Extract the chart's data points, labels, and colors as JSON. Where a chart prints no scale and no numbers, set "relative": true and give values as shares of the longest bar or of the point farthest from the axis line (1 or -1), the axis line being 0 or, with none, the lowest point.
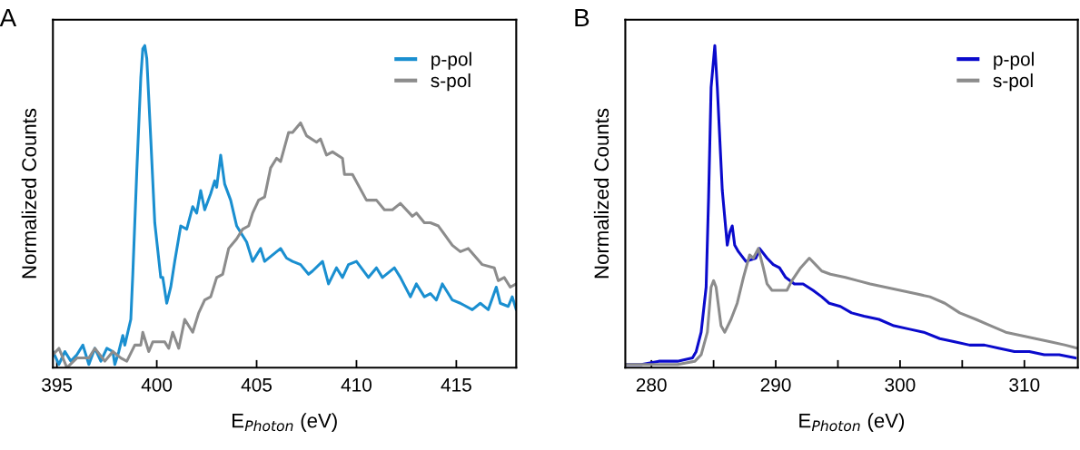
{
  "chart_data": [
    {
      "type": "line",
      "title": "A",
      "xlabel": "E$_{Photon}$ (eV)",
      "ylabel": "Normalized Counts",
      "relative": true,
      "legend": "top right",
      "xlim": [
        394.8,
        418.0
      ],
      "xticks": [
        395,
        400,
        405,
        410,
        415
      ],
      "grid": false,
      "series": [
        {
          "name": "p-pol",
          "color": "#1a8fd0",
          "x": [
            394.8,
            395.1,
            395.4,
            395.7,
            396.0,
            396.3,
            396.6,
            396.9,
            397.2,
            397.5,
            397.8,
            397.9,
            398.1,
            398.3,
            398.4,
            398.7,
            398.8,
            399.0,
            399.2,
            399.3,
            399.4,
            399.5,
            399.7,
            399.9,
            400.2,
            400.3,
            400.5,
            400.7,
            400.9,
            401.2,
            401.5,
            401.8,
            402.0,
            402.2,
            402.4,
            402.7,
            402.9,
            403.0,
            403.2,
            403.4,
            403.7,
            404.0,
            404.5,
            404.8,
            405.2,
            405.4,
            406.2,
            406.5,
            406.8,
            407.2,
            407.6,
            407.8,
            408.3,
            408.6,
            409.0,
            409.3,
            409.6,
            410.0,
            410.6,
            411.0,
            411.3,
            411.9,
            412.2,
            412.7,
            413.0,
            413.4,
            413.7,
            414.0,
            414.3,
            414.8,
            415.2,
            415.8,
            416.2,
            416.6,
            417.0,
            417.2,
            417.6,
            417.8,
            418.0
          ],
          "values": [
            0.05,
            0.01,
            0.05,
            0.02,
            0.04,
            0.07,
            0.01,
            0.06,
            0.02,
            0.06,
            0.05,
            0.01,
            0.05,
            0.1,
            0.07,
            0.15,
            0.29,
            0.61,
            0.9,
            0.99,
            1.0,
            0.96,
            0.71,
            0.45,
            0.28,
            0.28,
            0.2,
            0.25,
            0.33,
            0.44,
            0.43,
            0.5,
            0.48,
            0.55,
            0.49,
            0.54,
            0.58,
            0.56,
            0.66,
            0.57,
            0.52,
            0.44,
            0.39,
            0.33,
            0.37,
            0.33,
            0.37,
            0.34,
            0.33,
            0.32,
            0.29,
            0.3,
            0.33,
            0.26,
            0.31,
            0.28,
            0.32,
            0.33,
            0.28,
            0.31,
            0.28,
            0.31,
            0.28,
            0.22,
            0.26,
            0.22,
            0.23,
            0.21,
            0.26,
            0.21,
            0.2,
            0.18,
            0.2,
            0.18,
            0.25,
            0.2,
            0.19,
            0.22,
            0.18
          ]
        },
        {
          "name": "s-pol",
          "color": "#8c8c8c",
          "x": [
            394.8,
            395.1,
            395.5,
            396.0,
            396.6,
            396.9,
            397.4,
            397.8,
            398.2,
            398.5,
            398.9,
            399.2,
            399.3,
            399.6,
            399.8,
            400.4,
            400.6,
            400.8,
            401.1,
            401.4,
            401.8,
            402.1,
            402.4,
            402.7,
            403.0,
            403.3,
            403.6,
            404.0,
            404.3,
            404.6,
            404.8,
            405.1,
            405.4,
            405.7,
            406.0,
            406.2,
            406.6,
            406.8,
            407.2,
            407.5,
            408.0,
            408.2,
            408.5,
            408.8,
            409.3,
            409.4,
            409.8,
            410.5,
            411.0,
            411.4,
            411.8,
            412.2,
            412.8,
            413.0,
            413.4,
            413.7,
            414.1,
            414.8,
            415.2,
            415.6,
            416.3,
            416.9,
            417.1,
            417.4,
            417.7,
            418.0
          ],
          "values": [
            0.04,
            0.06,
            0.0,
            0.03,
            0.03,
            0.06,
            0.02,
            0.05,
            0.03,
            0.02,
            0.07,
            0.07,
            0.11,
            0.05,
            0.08,
            0.08,
            0.06,
            0.11,
            0.06,
            0.15,
            0.11,
            0.17,
            0.21,
            0.22,
            0.28,
            0.29,
            0.37,
            0.4,
            0.43,
            0.44,
            0.48,
            0.52,
            0.53,
            0.62,
            0.65,
            0.64,
            0.73,
            0.73,
            0.76,
            0.72,
            0.7,
            0.71,
            0.66,
            0.67,
            0.65,
            0.6,
            0.6,
            0.52,
            0.52,
            0.49,
            0.49,
            0.51,
            0.47,
            0.48,
            0.45,
            0.45,
            0.44,
            0.38,
            0.36,
            0.37,
            0.32,
            0.31,
            0.27,
            0.28,
            0.25,
            0.26
          ]
        }
      ]
    },
    {
      "type": "line",
      "title": "B",
      "xlabel": "E$_{Photon}$ (eV)",
      "ylabel": "Normalized Counts",
      "relative": true,
      "legend": "top right",
      "xlim": [
        277.9,
        314.3
      ],
      "xticks": [
        280,
        {
          "value": 285,
          "label": null
        },
        290,
        {
          "value": 295,
          "label": null
        },
        300,
        {
          "value": 305,
          "label": null
        },
        310
      ],
      "grid": false,
      "series": [
        {
          "name": "p-pol",
          "color": "#0a0acc",
          "x": [
            277.9,
            279.2,
            280.6,
            282.1,
            283.3,
            283.6,
            284.0,
            284.4,
            284.6,
            284.8,
            285.1,
            285.3,
            285.7,
            286.1,
            286.3,
            286.5,
            286.7,
            287.0,
            287.6,
            288.4,
            288.7,
            289.3,
            289.8,
            290.3,
            290.8,
            291.5,
            292.2,
            293.0,
            293.7,
            294.3,
            295.2,
            296.1,
            297.1,
            298.3,
            299.5,
            300.7,
            301.9,
            303.2,
            304.4,
            305.6,
            306.8,
            308.0,
            309.2,
            310.4,
            311.6,
            312.8,
            314.1
          ],
          "values": [
            0.01,
            0.01,
            0.02,
            0.02,
            0.03,
            0.05,
            0.11,
            0.25,
            0.53,
            0.87,
            1.0,
            0.87,
            0.55,
            0.38,
            0.42,
            0.44,
            0.38,
            0.36,
            0.33,
            0.34,
            0.37,
            0.34,
            0.32,
            0.31,
            0.28,
            0.26,
            0.26,
            0.24,
            0.22,
            0.2,
            0.19,
            0.17,
            0.16,
            0.15,
            0.13,
            0.12,
            0.11,
            0.09,
            0.08,
            0.07,
            0.07,
            0.06,
            0.05,
            0.05,
            0.04,
            0.04,
            0.03
          ]
        },
        {
          "name": "s-pol",
          "color": "#8c8c8c",
          "x": [
            277.9,
            279.2,
            280.6,
            282.1,
            283.5,
            284.0,
            284.5,
            284.8,
            285.0,
            285.2,
            285.6,
            285.9,
            286.4,
            286.9,
            287.4,
            287.9,
            288.2,
            288.6,
            289.0,
            289.3,
            289.7,
            290.3,
            290.9,
            291.3,
            292.0,
            292.7,
            293.2,
            293.7,
            294.4,
            295.6,
            296.6,
            297.6,
            298.8,
            300.0,
            301.2,
            302.4,
            303.6,
            304.8,
            306.1,
            307.3,
            308.5,
            309.7,
            310.9,
            312.1,
            313.3,
            314.3
          ],
          "values": [
            0.01,
            0.01,
            0.01,
            0.01,
            0.02,
            0.04,
            0.11,
            0.25,
            0.27,
            0.25,
            0.13,
            0.11,
            0.15,
            0.2,
            0.28,
            0.35,
            0.34,
            0.37,
            0.31,
            0.26,
            0.24,
            0.24,
            0.24,
            0.27,
            0.31,
            0.34,
            0.32,
            0.3,
            0.29,
            0.28,
            0.27,
            0.26,
            0.25,
            0.24,
            0.23,
            0.22,
            0.2,
            0.17,
            0.15,
            0.13,
            0.11,
            0.1,
            0.09,
            0.08,
            0.07,
            0.06
          ]
        }
      ]
    }
  ]
}
